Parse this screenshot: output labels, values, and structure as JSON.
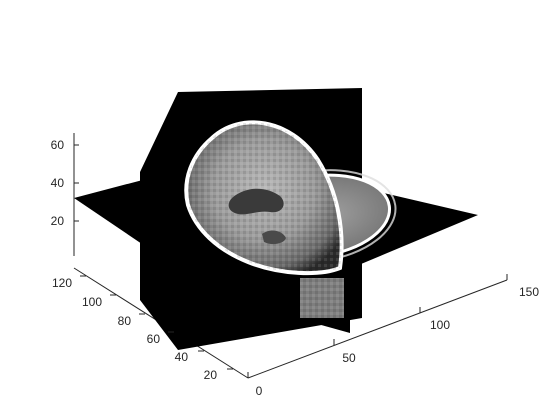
{
  "chart_data": {
    "type": "volume-slice",
    "title": "",
    "xlabel": "",
    "ylabel": "",
    "zlabel": "",
    "x_axis": {
      "ticks": [
        0,
        50,
        100,
        150
      ],
      "range": [
        0,
        150
      ]
    },
    "y_axis": {
      "ticks": [
        20,
        40,
        60,
        80,
        100,
        120
      ],
      "range": [
        0,
        128
      ]
    },
    "z_axis": {
      "ticks": [
        20,
        40,
        60
      ],
      "range": [
        0,
        68
      ]
    },
    "slices": [
      {
        "name": "horizontal-slice",
        "plane": "z",
        "position": 34
      },
      {
        "name": "vertical-slice-x",
        "plane": "x",
        "position": 64
      },
      {
        "name": "vertical-slice-y",
        "plane": "y",
        "position": 64
      }
    ],
    "colormap": "gray",
    "grid": false,
    "box": false
  }
}
